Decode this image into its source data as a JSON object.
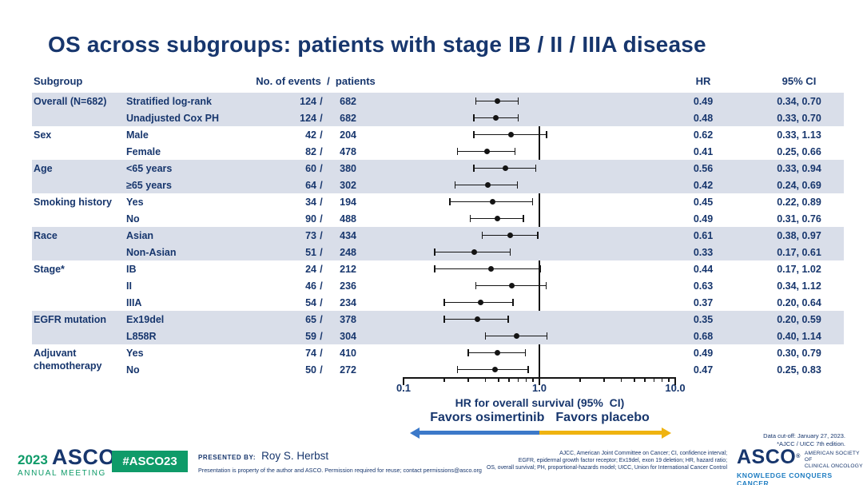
{
  "title": "OS across subgroups: patients with stage IB / II / IIIA disease",
  "table_headers": {
    "subgroup": "Subgroup",
    "events": "No. of events  /  patients",
    "hr": "HR",
    "ci": "95% CI"
  },
  "chart_data": {
    "type": "forest",
    "x_axis": {
      "label": "HR for overall survival (95%  CI)",
      "scale": "log",
      "min": 0.1,
      "max": 10.0,
      "tick_labels": [
        "0.1",
        "1.0",
        "10.0"
      ],
      "major_ticks": [
        0.1,
        1.0,
        10.0
      ],
      "minor_ticks": [
        0.2,
        0.3,
        0.4,
        0.5,
        0.6,
        0.7,
        0.8,
        0.9,
        2,
        3,
        4,
        5,
        6,
        7,
        8,
        9
      ],
      "reference_line": 1.0
    },
    "favors_left": "Favors osimertinib",
    "favors_right": "Favors placebo",
    "groups": [
      {
        "label": "Overall (N=682)",
        "shaded": true,
        "rows": [
          {
            "sub": "Stratified log-rank",
            "events": "124",
            "patients": "682",
            "hr": "0.49",
            "hr_val": 0.49,
            "ci": "0.34, 0.70",
            "ci_low": 0.34,
            "ci_high": 0.7
          },
          {
            "sub": "Unadjusted Cox PH",
            "events": "124",
            "patients": "682",
            "hr": "0.48",
            "hr_val": 0.48,
            "ci": "0.33, 0.70",
            "ci_low": 0.33,
            "ci_high": 0.7
          }
        ]
      },
      {
        "label": "Sex",
        "shaded": false,
        "rows": [
          {
            "sub": "Male",
            "events": "42",
            "patients": "204",
            "hr": "0.62",
            "hr_val": 0.62,
            "ci": "0.33, 1.13",
            "ci_low": 0.33,
            "ci_high": 1.13
          },
          {
            "sub": "Female",
            "events": "82",
            "patients": "478",
            "hr": "0.41",
            "hr_val": 0.41,
            "ci": "0.25, 0.66",
            "ci_low": 0.25,
            "ci_high": 0.66
          }
        ]
      },
      {
        "label": "Age",
        "shaded": true,
        "rows": [
          {
            "sub": "<65 years",
            "events": "60",
            "patients": "380",
            "hr": "0.56",
            "hr_val": 0.56,
            "ci": "0.33, 0.94",
            "ci_low": 0.33,
            "ci_high": 0.94
          },
          {
            "sub": "≥65 years",
            "events": "64",
            "patients": "302",
            "hr": "0.42",
            "hr_val": 0.42,
            "ci": "0.24, 0.69",
            "ci_low": 0.24,
            "ci_high": 0.69
          }
        ]
      },
      {
        "label": "Smoking history",
        "shaded": false,
        "rows": [
          {
            "sub": "Yes",
            "events": "34",
            "patients": "194",
            "hr": "0.45",
            "hr_val": 0.45,
            "ci": "0.22, 0.89",
            "ci_low": 0.22,
            "ci_high": 0.89
          },
          {
            "sub": "No",
            "events": "90",
            "patients": "488",
            "hr": "0.49",
            "hr_val": 0.49,
            "ci": "0.31, 0.76",
            "ci_low": 0.31,
            "ci_high": 0.76
          }
        ]
      },
      {
        "label": "Race",
        "shaded": true,
        "rows": [
          {
            "sub": "Asian",
            "events": "73",
            "patients": "434",
            "hr": "0.61",
            "hr_val": 0.61,
            "ci": "0.38, 0.97",
            "ci_low": 0.38,
            "ci_high": 0.97
          },
          {
            "sub": "Non-Asian",
            "events": "51",
            "patients": "248",
            "hr": "0.33",
            "hr_val": 0.33,
            "ci": "0.17, 0.61",
            "ci_low": 0.17,
            "ci_high": 0.61
          }
        ]
      },
      {
        "label": "Stage*",
        "shaded": false,
        "rows": [
          {
            "sub": "IB",
            "events": "24",
            "patients": "212",
            "hr": "0.44",
            "hr_val": 0.44,
            "ci": "0.17, 1.02",
            "ci_low": 0.17,
            "ci_high": 1.02
          },
          {
            "sub": "II",
            "events": "46",
            "patients": "236",
            "hr": "0.63",
            "hr_val": 0.63,
            "ci": "0.34, 1.12",
            "ci_low": 0.34,
            "ci_high": 1.12
          },
          {
            "sub": "IIIA",
            "events": "54",
            "patients": "234",
            "hr": "0.37",
            "hr_val": 0.37,
            "ci": "0.20, 0.64",
            "ci_low": 0.2,
            "ci_high": 0.64
          }
        ]
      },
      {
        "label": "EGFR mutation",
        "shaded": true,
        "rows": [
          {
            "sub": "Ex19del",
            "events": "65",
            "patients": "378",
            "hr": "0.35",
            "hr_val": 0.35,
            "ci": "0.20, 0.59",
            "ci_low": 0.2,
            "ci_high": 0.59
          },
          {
            "sub": "L858R",
            "events": "59",
            "patients": "304",
            "hr": "0.68",
            "hr_val": 0.68,
            "ci": "0.40, 1.14",
            "ci_low": 0.4,
            "ci_high": 1.14
          }
        ]
      },
      {
        "label": "Adjuvant chemotherapy",
        "shaded": false,
        "rows": [
          {
            "sub": "Yes",
            "events": "74",
            "patients": "410",
            "hr": "0.49",
            "hr_val": 0.49,
            "ci": "0.30, 0.79",
            "ci_low": 0.3,
            "ci_high": 0.79
          },
          {
            "sub": "No",
            "events": "50",
            "patients": "272",
            "hr": "0.47",
            "hr_val": 0.47,
            "ci": "0.25, 0.83",
            "ci_low": 0.25,
            "ci_high": 0.83
          }
        ]
      }
    ]
  },
  "footnote": {
    "line1": "Data cut-off: January 27, 2023.",
    "line2": "*AJCC / UICC 7th edition."
  },
  "footer": {
    "meeting": {
      "year": "2023",
      "asco": "ASCO",
      "mark": "®",
      "sub": "ANNUAL MEETING"
    },
    "hashtag": "#ASCO23",
    "presented_by_label": "PRESENTED BY:",
    "presenter": "Roy S. Herbst",
    "disclaimer": "Presentation is property of the author and ASCO. Permission required for reuse; contact permissions@asco.org",
    "abbreviations": [
      "AJCC, American Joint Committee on Cancer; CI, confidence interval;",
      "EGFR, epidermal growth factor receptor; Ex19del, exon 19 deletion; HR, hazard ratio;",
      "OS, overall survival; PH, proportional-hazards model; UICC, Union for International Cancer Control"
    ],
    "asco_logo": {
      "name": "ASCO",
      "mark": "®",
      "society_line1": "AMERICAN SOCIETY OF",
      "society_line2": "CLINICAL ONCOLOGY",
      "tagline": "KNOWLEDGE CONQUERS CANCER"
    }
  },
  "colors": {
    "navy": "#17366d",
    "band": "#d9dee9",
    "green": "#0f9b69",
    "arrow_blue": "#3c79c9",
    "arrow_gold": "#efb310",
    "tagline_blue": "#1e7dc2"
  }
}
